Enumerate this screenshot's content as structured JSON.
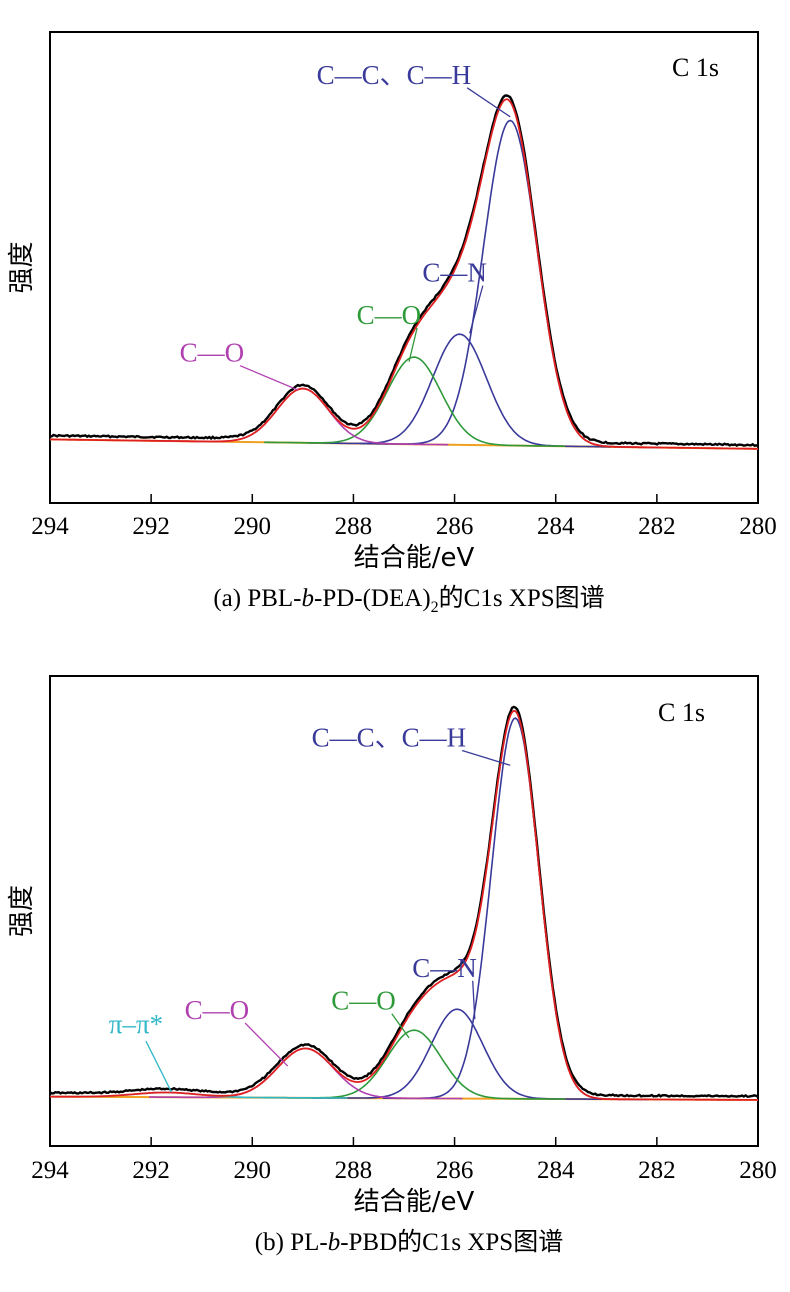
{
  "chart_data": [
    {
      "type": "line",
      "panel_label": "C 1s",
      "xlabel": "结合能/eV",
      "ylabel": "强度",
      "xlim": [
        294,
        280
      ],
      "x_reversed": true,
      "xticks": [
        "294",
        "292",
        "290",
        "288",
        "286",
        "284",
        "282",
        "280"
      ],
      "ylim": [
        0,
        100
      ],
      "yticks_shown": false,
      "caption": {
        "prefix": "(a) PBL-",
        "italic": "b",
        "middle": "-PD-(DEA)",
        "sub": "2",
        "suffix": "的C1s XPS图谱"
      },
      "baseline": {
        "color": "#f0a020",
        "x": [
          294,
          280
        ],
        "y": [
          13.5,
          11.5
        ]
      },
      "peaks": [
        {
          "label": "C—C、C—H",
          "center": 284.9,
          "height": 69,
          "fwhm": 1.25,
          "color": "#3a3a9a",
          "label_color": "#3a3a9a",
          "label_pos": [
            287.2,
            89
          ],
          "pointer_to": [
            284.9,
            82
          ]
        },
        {
          "label": "C—N",
          "center": 285.9,
          "height": 23.5,
          "fwhm": 1.25,
          "color": "#3a3a9a",
          "label_color": "#3a3a9a",
          "label_pos": [
            286.0,
            47
          ],
          "pointer_to": [
            285.7,
            36
          ]
        },
        {
          "label": "C—O",
          "center": 286.8,
          "height": 18.5,
          "fwhm": 1.25,
          "color": "#2e9a3a",
          "label_color": "#2e9a3a",
          "label_pos": [
            287.3,
            38
          ],
          "pointer_to": [
            286.9,
            30
          ]
        },
        {
          "label": "C—O",
          "center": 289.0,
          "height": 11.5,
          "fwhm": 1.2,
          "color": "#b040b0",
          "label_color": "#b040b0",
          "label_pos": [
            290.8,
            30
          ],
          "pointer_to": [
            289.1,
            24
          ]
        }
      ],
      "envelope_color": "#e02020",
      "raw_color": "#000000"
    },
    {
      "type": "line",
      "panel_label": "C 1s",
      "xlabel": "结合能/eV",
      "ylabel": "强度",
      "xlim": [
        294,
        280
      ],
      "x_reversed": true,
      "xticks": [
        "294",
        "292",
        "290",
        "288",
        "286",
        "284",
        "282",
        "280"
      ],
      "ylim": [
        0,
        100
      ],
      "yticks_shown": false,
      "caption": {
        "prefix": "(b) PL-",
        "italic": "b",
        "middle": "-PBD",
        "sub": "",
        "suffix": "的C1s XPS图谱"
      },
      "baseline": {
        "color": "#f0a020",
        "x": [
          294,
          280
        ],
        "y": [
          10.5,
          9.8
        ]
      },
      "peaks": [
        {
          "label": "C—C、C—H",
          "center": 284.8,
          "height": 81,
          "fwhm": 1.1,
          "color": "#3a3a9a",
          "label_color": "#3a3a9a",
          "label_pos": [
            287.3,
            85
          ],
          "pointer_to": [
            284.9,
            81
          ]
        },
        {
          "label": "C—N",
          "center": 285.95,
          "height": 19,
          "fwhm": 1.2,
          "color": "#3a3a9a",
          "label_color": "#3a3a9a",
          "label_pos": [
            286.2,
            36
          ],
          "pointer_to": [
            285.6,
            27
          ]
        },
        {
          "label": "C—O",
          "center": 286.8,
          "height": 14.5,
          "fwhm": 1.25,
          "color": "#2e9a3a",
          "label_color": "#2e9a3a",
          "label_pos": [
            287.8,
            29
          ],
          "pointer_to": [
            286.9,
            23
          ]
        },
        {
          "label": "C—O",
          "center": 288.95,
          "height": 10.5,
          "fwhm": 1.3,
          "color": "#b040b0",
          "label_color": "#b040b0",
          "label_pos": [
            290.7,
            27
          ],
          "pointer_to": [
            289.3,
            17
          ]
        },
        {
          "label": "π–π*",
          "center": 291.7,
          "height": 1.0,
          "fwhm": 1.5,
          "color": "#30b8c8",
          "label_color": "#30b8c8",
          "label_pos": [
            292.3,
            24
          ],
          "pointer_to": [
            291.6,
            11.5
          ]
        }
      ],
      "envelope_color": "#e02020",
      "raw_color": "#000000"
    }
  ]
}
